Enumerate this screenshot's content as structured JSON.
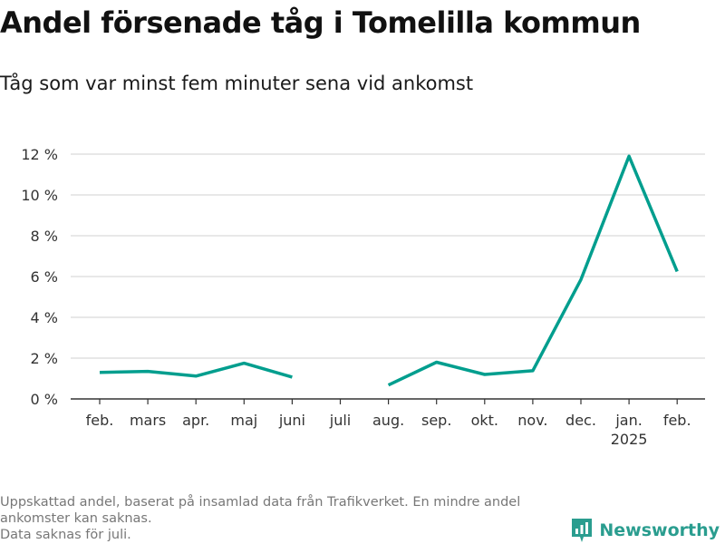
{
  "header": {
    "title": "Andel försenade tåg i Tomelilla kommun",
    "subtitle": "Tåg som var minst fem minuter sena vid ankomst"
  },
  "footer": {
    "notes": [
      "Uppskattad andel, baserat på insamlad data från Trafikverket. En mindre andel ankomster kan saknas.",
      "Data saknas för juli."
    ],
    "brand": "Newsworthy"
  },
  "colors": {
    "line": "#009e8e",
    "grid": "#d9d9d9",
    "axis": "#333333",
    "brand": "#2a9d8f"
  },
  "chart_data": {
    "type": "line",
    "title": "Andel försenade tåg i Tomelilla kommun",
    "subtitle": "Tåg som var minst fem minuter sena vid ankomst",
    "xlabel": "",
    "ylabel": "",
    "categories": [
      "feb.",
      "mars",
      "apr.",
      "maj",
      "juni",
      "juli",
      "aug.",
      "sep.",
      "okt.",
      "nov.",
      "dec.",
      "jan.",
      "feb."
    ],
    "year_markers": [
      {
        "category_index": 11,
        "label": "2025"
      }
    ],
    "series": [
      {
        "values": [
          1.3,
          1.35,
          1.12,
          1.75,
          1.07,
          null,
          0.68,
          1.8,
          1.2,
          1.38,
          5.85,
          11.9,
          6.25
        ]
      }
    ],
    "yticks": [
      0,
      2,
      4,
      6,
      8,
      10,
      12
    ],
    "ytick_labels": [
      "0 %",
      "2 %",
      "4 %",
      "6 %",
      "8 %",
      "10 %",
      "12 %"
    ],
    "ylim": [
      0,
      12
    ],
    "grid": true,
    "legend": "none"
  }
}
